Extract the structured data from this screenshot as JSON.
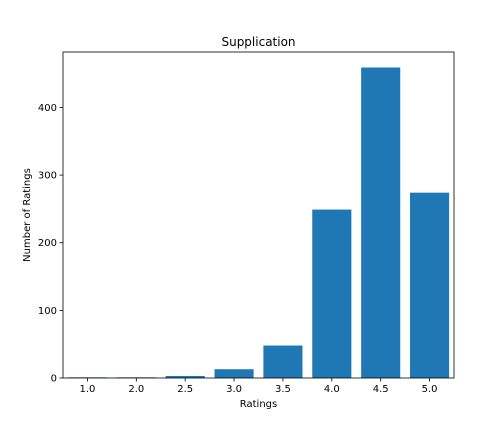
{
  "chart_data": {
    "type": "bar",
    "title": "Supplication",
    "xlabel": "Ratings",
    "ylabel": "Number of Ratings",
    "categories": [
      "1.0",
      "2.0",
      "2.5",
      "3.0",
      "3.5",
      "4.0",
      "4.5",
      "5.0"
    ],
    "values": [
      1,
      1,
      3,
      13,
      48,
      249,
      459,
      274
    ],
    "ylim": [
      0,
      481.95
    ],
    "yticks": [
      0,
      100,
      200,
      300,
      400
    ],
    "ytick_labels": [
      "0",
      "100",
      "200",
      "300",
      "400"
    ],
    "bar_color": "#1f77b4",
    "grid": false
  }
}
